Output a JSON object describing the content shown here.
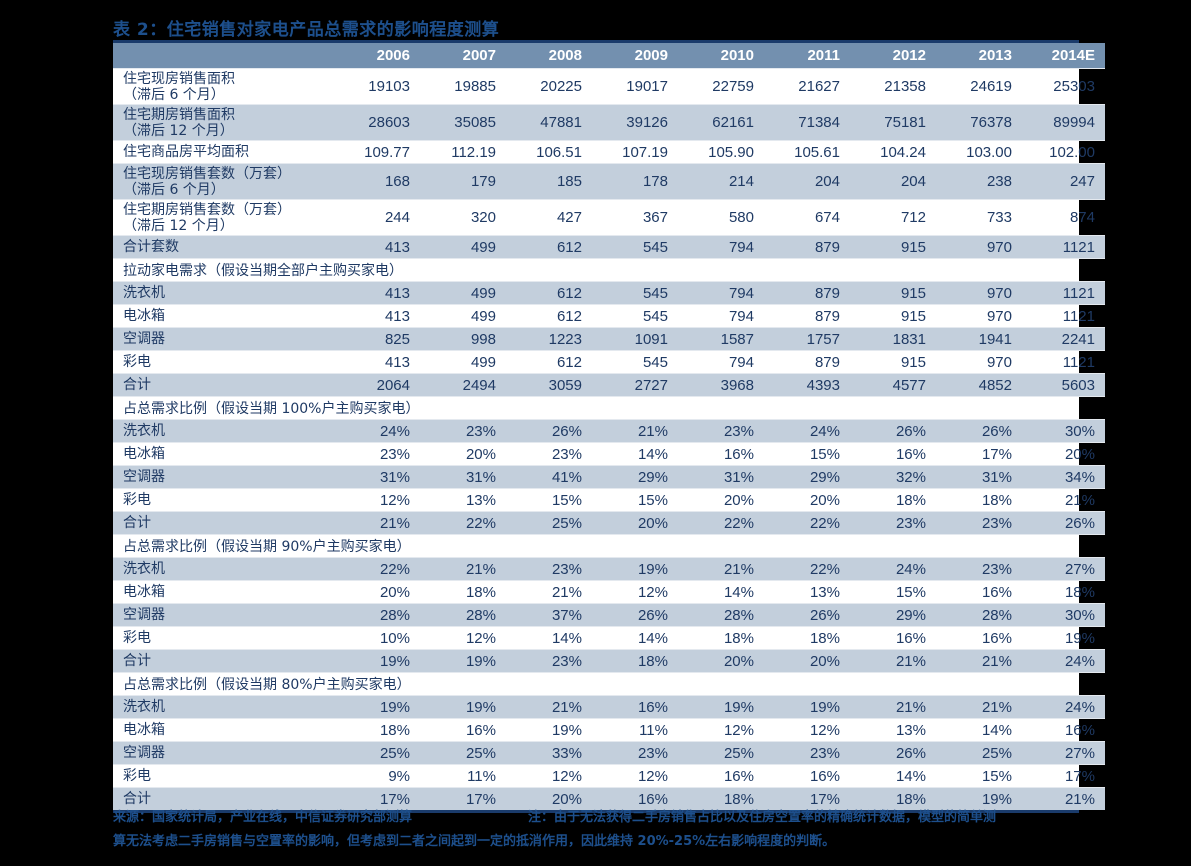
{
  "title": "表 2：住宅销售对家电产品总需求的影响程度测算",
  "table": {
    "years": [
      "2006",
      "2007",
      "2008",
      "2009",
      "2010",
      "2011",
      "2012",
      "2013",
      "2014E"
    ],
    "rows": [
      {
        "type": "data",
        "label": "住宅现房销售面积",
        "sub": "（滞后 6 个月）",
        "shade": false,
        "values": [
          "19103",
          "19885",
          "20225",
          "19017",
          "22759",
          "21627",
          "21358",
          "24619",
          "25303"
        ]
      },
      {
        "type": "data",
        "label": "住宅期房销售面积",
        "sub": "（滞后 12 个月）",
        "shade": true,
        "values": [
          "28603",
          "35085",
          "47881",
          "39126",
          "62161",
          "71384",
          "75181",
          "76378",
          "89994"
        ]
      },
      {
        "type": "data",
        "label": "住宅商品房平均面积",
        "sub": "",
        "shade": false,
        "values": [
          "109.77",
          "112.19",
          "106.51",
          "107.19",
          "105.90",
          "105.61",
          "104.24",
          "103.00",
          "102.00"
        ]
      },
      {
        "type": "data",
        "label": "住宅现房销售套数（万套）",
        "sub": "（滞后 6 个月）",
        "shade": true,
        "values": [
          "168",
          "179",
          "185",
          "178",
          "214",
          "204",
          "204",
          "238",
          "247"
        ]
      },
      {
        "type": "data",
        "label": "住宅期房销售套数（万套）",
        "sub": "（滞后 12 个月）",
        "shade": false,
        "values": [
          "244",
          "320",
          "427",
          "367",
          "580",
          "674",
          "712",
          "733",
          "874"
        ]
      },
      {
        "type": "data",
        "label": "合计套数",
        "sub": "",
        "shade": true,
        "values": [
          "413",
          "499",
          "612",
          "545",
          "794",
          "879",
          "915",
          "970",
          "1121"
        ]
      },
      {
        "type": "section",
        "label": "拉动家电需求（假设当期全部户主购买家电）",
        "shade": false
      },
      {
        "type": "data",
        "label": "洗衣机",
        "sub": "",
        "shade": true,
        "values": [
          "413",
          "499",
          "612",
          "545",
          "794",
          "879",
          "915",
          "970",
          "1121"
        ]
      },
      {
        "type": "data",
        "label": "电冰箱",
        "sub": "",
        "shade": false,
        "values": [
          "413",
          "499",
          "612",
          "545",
          "794",
          "879",
          "915",
          "970",
          "1121"
        ]
      },
      {
        "type": "data",
        "label": "空调器",
        "sub": "",
        "shade": true,
        "values": [
          "825",
          "998",
          "1223",
          "1091",
          "1587",
          "1757",
          "1831",
          "1941",
          "2241"
        ]
      },
      {
        "type": "data",
        "label": "彩电",
        "sub": "",
        "shade": false,
        "values": [
          "413",
          "499",
          "612",
          "545",
          "794",
          "879",
          "915",
          "970",
          "1121"
        ]
      },
      {
        "type": "data",
        "label": "合计",
        "sub": "",
        "shade": true,
        "values": [
          "2064",
          "2494",
          "3059",
          "2727",
          "3968",
          "4393",
          "4577",
          "4852",
          "5603"
        ]
      },
      {
        "type": "section",
        "label": "占总需求比例（假设当期 100%户主购买家电）",
        "shade": false
      },
      {
        "type": "data",
        "label": "洗衣机",
        "sub": "",
        "shade": true,
        "values": [
          "24%",
          "23%",
          "26%",
          "21%",
          "23%",
          "24%",
          "26%",
          "26%",
          "30%"
        ]
      },
      {
        "type": "data",
        "label": "电冰箱",
        "sub": "",
        "shade": false,
        "values": [
          "23%",
          "20%",
          "23%",
          "14%",
          "16%",
          "15%",
          "16%",
          "17%",
          "20%"
        ]
      },
      {
        "type": "data",
        "label": "空调器",
        "sub": "",
        "shade": true,
        "values": [
          "31%",
          "31%",
          "41%",
          "29%",
          "31%",
          "29%",
          "32%",
          "31%",
          "34%"
        ]
      },
      {
        "type": "data",
        "label": "彩电",
        "sub": "",
        "shade": false,
        "values": [
          "12%",
          "13%",
          "15%",
          "15%",
          "20%",
          "20%",
          "18%",
          "18%",
          "21%"
        ]
      },
      {
        "type": "data",
        "label": "合计",
        "sub": "",
        "shade": true,
        "values": [
          "21%",
          "22%",
          "25%",
          "20%",
          "22%",
          "22%",
          "23%",
          "23%",
          "26%"
        ]
      },
      {
        "type": "section",
        "label": "占总需求比例（假设当期 90%户主购买家电）",
        "shade": false
      },
      {
        "type": "data",
        "label": "洗衣机",
        "sub": "",
        "shade": true,
        "values": [
          "22%",
          "21%",
          "23%",
          "19%",
          "21%",
          "22%",
          "24%",
          "23%",
          "27%"
        ]
      },
      {
        "type": "data",
        "label": "电冰箱",
        "sub": "",
        "shade": false,
        "values": [
          "20%",
          "18%",
          "21%",
          "12%",
          "14%",
          "13%",
          "15%",
          "16%",
          "18%"
        ]
      },
      {
        "type": "data",
        "label": "空调器",
        "sub": "",
        "shade": true,
        "values": [
          "28%",
          "28%",
          "37%",
          "26%",
          "28%",
          "26%",
          "29%",
          "28%",
          "30%"
        ]
      },
      {
        "type": "data",
        "label": "彩电",
        "sub": "",
        "shade": false,
        "values": [
          "10%",
          "12%",
          "14%",
          "14%",
          "18%",
          "18%",
          "16%",
          "16%",
          "19%"
        ]
      },
      {
        "type": "data",
        "label": "合计",
        "sub": "",
        "shade": true,
        "values": [
          "19%",
          "19%",
          "23%",
          "18%",
          "20%",
          "20%",
          "21%",
          "21%",
          "24%"
        ]
      },
      {
        "type": "section",
        "label": "占总需求比例（假设当期 80%户主购买家电）",
        "shade": false
      },
      {
        "type": "data",
        "label": "洗衣机",
        "sub": "",
        "shade": true,
        "values": [
          "19%",
          "19%",
          "21%",
          "16%",
          "19%",
          "19%",
          "21%",
          "21%",
          "24%"
        ]
      },
      {
        "type": "data",
        "label": "电冰箱",
        "sub": "",
        "shade": false,
        "values": [
          "18%",
          "16%",
          "19%",
          "11%",
          "12%",
          "12%",
          "13%",
          "14%",
          "16%"
        ]
      },
      {
        "type": "data",
        "label": "空调器",
        "sub": "",
        "shade": true,
        "values": [
          "25%",
          "25%",
          "33%",
          "23%",
          "25%",
          "23%",
          "26%",
          "25%",
          "27%"
        ]
      },
      {
        "type": "data",
        "label": "彩电",
        "sub": "",
        "shade": false,
        "values": [
          "9%",
          "11%",
          "12%",
          "12%",
          "16%",
          "16%",
          "14%",
          "15%",
          "17%"
        ]
      },
      {
        "type": "data",
        "label": "合计",
        "sub": "",
        "shade": true,
        "values": [
          "17%",
          "17%",
          "20%",
          "16%",
          "18%",
          "17%",
          "18%",
          "19%",
          "21%"
        ]
      }
    ]
  },
  "footer": {
    "source": "来源：国家统计局，产业在线，中信证券研究部测算",
    "note_line1": "注：由于无法获得二手房销售占比以及住房空置率的精确统计数据，模型的简单测",
    "note_line2": "算无法考虑二手房销售与空置率的影响，但考虑到二者之间起到一定的抵消作用，因此维持 20%-25%左右影响程度的判断。"
  },
  "colors": {
    "header_bg": "#7390AF",
    "shade_bg": "#C3CFDC",
    "text": "#1F3A64",
    "title": "#1D4F8C",
    "rule": "#1A3B6B"
  }
}
